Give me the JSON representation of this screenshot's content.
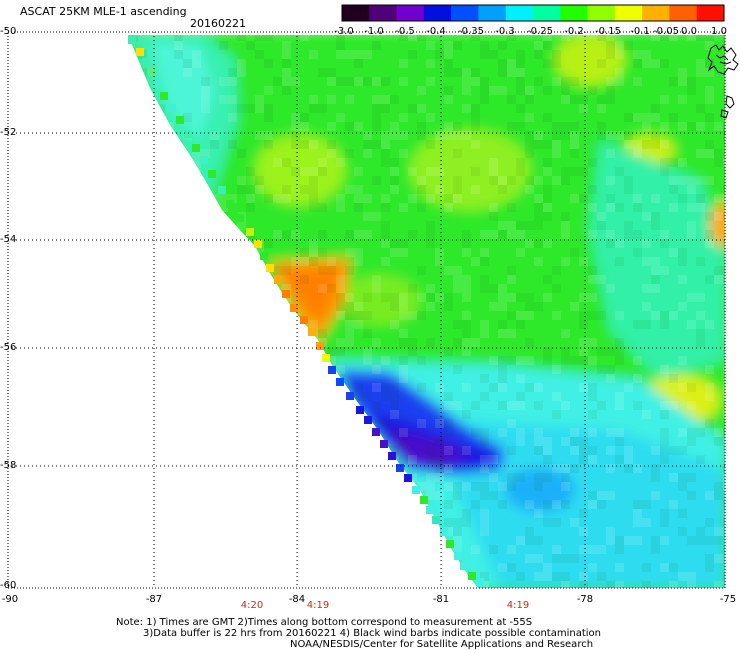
{
  "header": {
    "title": "ASCAT 25KM MLE-1 ascending",
    "date": "20160221"
  },
  "colorbar": {
    "labels": [
      "-3.0",
      "-1.0",
      "-0.5",
      "-0.4",
      "-0.35",
      "-0.3",
      "-0.25",
      "-0.2",
      "-0.15",
      "-0.1",
      "-0.05",
      "0.0",
      "1.0"
    ],
    "colors": [
      "#200020",
      "#500078",
      "#7000d0",
      "#0010e0",
      "#0050ff",
      "#00a0ff",
      "#00f0ff",
      "#00ffa0",
      "#20ff00",
      "#90ff00",
      "#f0ff00",
      "#ffb000",
      "#ff6000",
      "#ff1000"
    ]
  },
  "map": {
    "lat_labels": [
      "-50",
      "-52",
      "-54",
      "-56",
      "-58",
      "-60"
    ],
    "lon_labels": [
      "-90",
      "-87",
      "-84",
      "-81",
      "-78",
      "-75"
    ],
    "lat_range": [
      -60,
      -50
    ],
    "lon_range": [
      -90,
      -75
    ]
  },
  "time_labels": [
    "4:20",
    "4:19",
    "4:19"
  ],
  "footer": {
    "line1": "Note: 1) Times are GMT 2)Times along bottom correspond to measurement at -55S",
    "line2": "3)Data buffer is 22 hrs from 20160221 4) Black wind barbs indicate possible contamination",
    "line3": "NOAA/NESDIS/Center for Satellite Applications and Research"
  }
}
